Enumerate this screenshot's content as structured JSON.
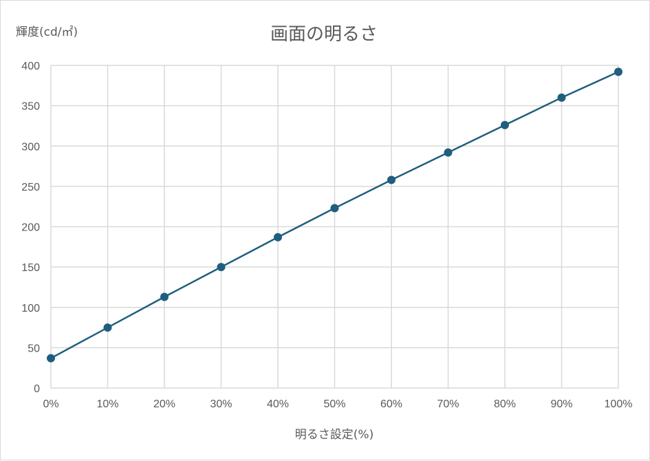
{
  "chart_data": {
    "type": "line",
    "title": "画面の明るさ",
    "xlabel": "明るさ設定(%)",
    "ylabel": "輝度(cd/㎡)",
    "categories": [
      "0%",
      "10%",
      "20%",
      "30%",
      "40%",
      "50%",
      "60%",
      "70%",
      "80%",
      "90%",
      "100%"
    ],
    "series": [
      {
        "values": [
          37,
          75,
          113,
          150,
          187,
          223,
          258,
          292,
          326,
          360,
          392
        ]
      }
    ],
    "ylim": [
      0,
      400
    ],
    "yticks": [
      "0",
      "50",
      "100",
      "150",
      "200",
      "250",
      "300",
      "350",
      "400"
    ],
    "grid": true,
    "legend": "none",
    "colors": {
      "series": "#1f5e7f",
      "grid": "#d9d9d9",
      "text": "#595959"
    }
  }
}
